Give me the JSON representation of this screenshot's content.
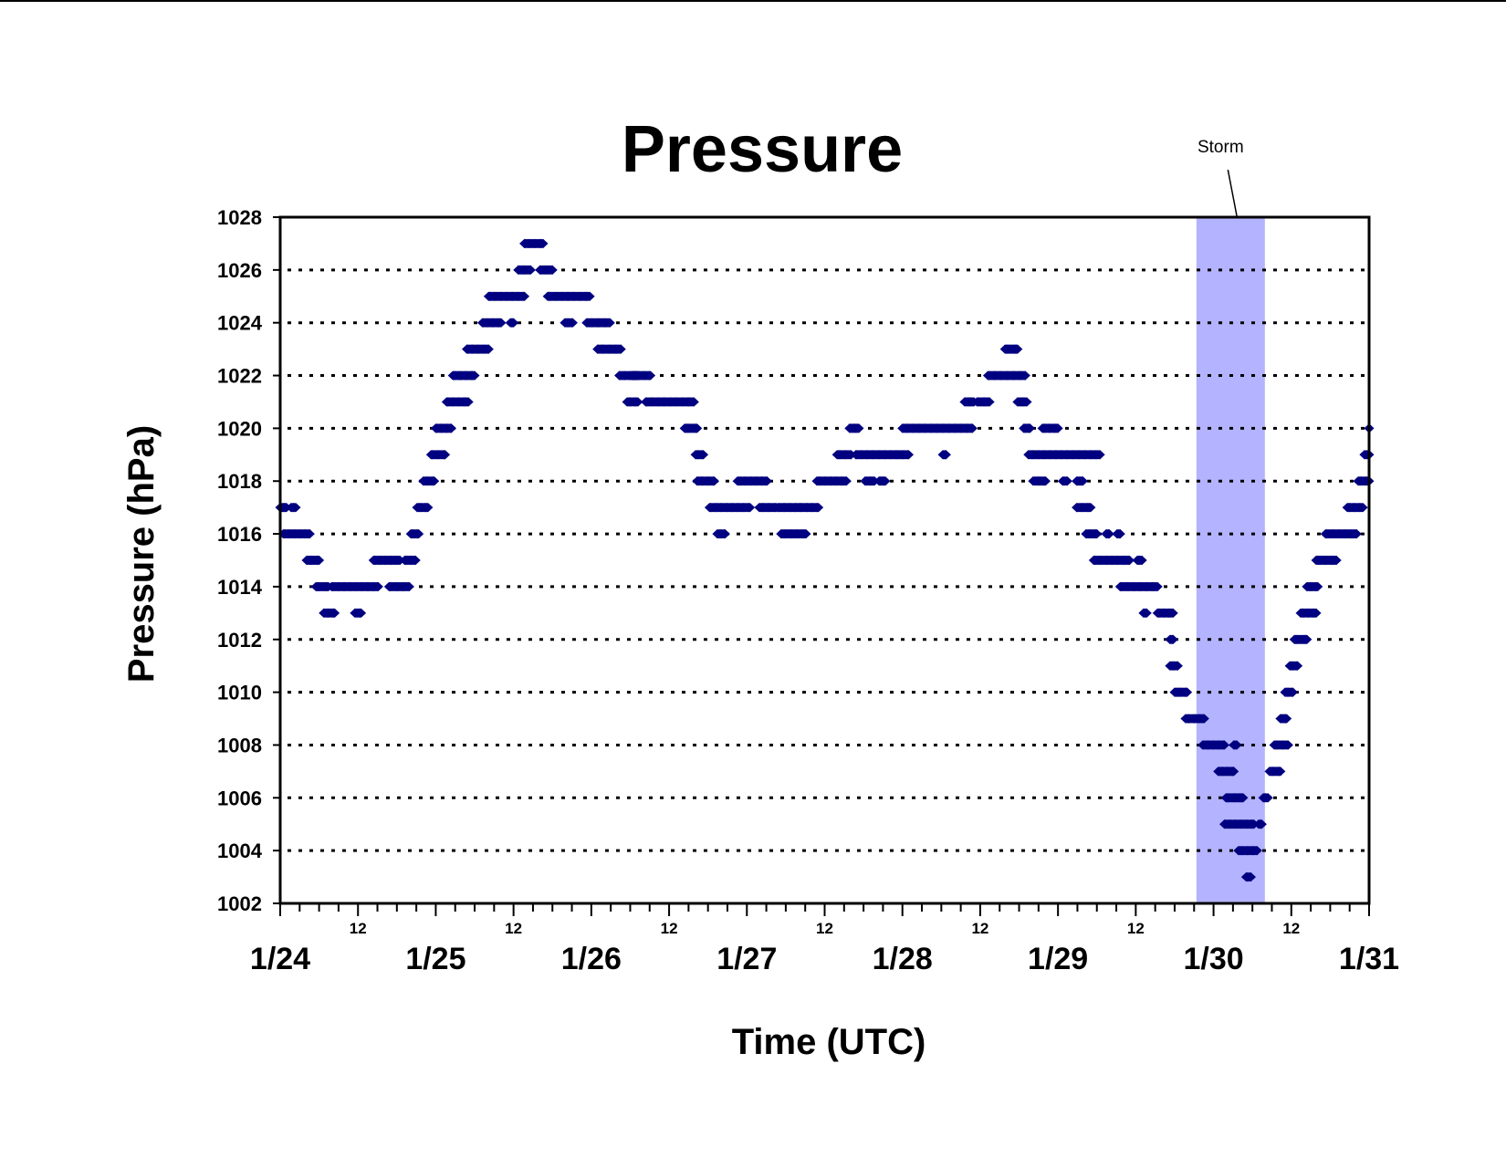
{
  "chart_data": {
    "type": "scatter",
    "title": "Pressure",
    "xlabel": "Time (UTC)",
    "ylabel": "Pressure (hPa)",
    "ylim": [
      1002,
      1028
    ],
    "yticks": [
      "1002",
      "1004",
      "1006",
      "1008",
      "1010",
      "1012",
      "1014",
      "1016",
      "1018",
      "1020",
      "1022",
      "1024",
      "1026",
      "1028"
    ],
    "xlim_days": [
      0,
      7
    ],
    "day_labels": [
      "1/24",
      "1/25",
      "1/26",
      "1/27",
      "1/28",
      "1/29",
      "1/30",
      "1/31"
    ],
    "noon_label": "12",
    "grid": "horizontal dotted",
    "legend": "none",
    "marker_color": "#000080",
    "storm_color": "#b3b3ff",
    "annotation": {
      "text": "Storm",
      "x_start": 5.89,
      "x_end": 6.33
    },
    "x_unit": "days since 1/24 00 UTC",
    "segments": [
      [
        0.0,
        0.04,
        1017
      ],
      [
        0.07,
        0.1,
        1017
      ],
      [
        0.02,
        0.19,
        1016
      ],
      [
        0.17,
        0.25,
        1015
      ],
      [
        0.23,
        0.31,
        1014
      ],
      [
        0.28,
        0.35,
        1013
      ],
      [
        0.33,
        0.63,
        1014
      ],
      [
        0.48,
        0.52,
        1013
      ],
      [
        0.6,
        0.77,
        1015
      ],
      [
        0.7,
        0.83,
        1014
      ],
      [
        0.8,
        0.87,
        1015
      ],
      [
        0.84,
        0.89,
        1016
      ],
      [
        0.88,
        0.95,
        1017
      ],
      [
        0.92,
        0.99,
        1018
      ],
      [
        0.97,
        1.06,
        1019
      ],
      [
        1.0,
        1.1,
        1020
      ],
      [
        1.07,
        1.21,
        1021
      ],
      [
        1.11,
        1.25,
        1022
      ],
      [
        1.2,
        1.34,
        1023
      ],
      [
        1.3,
        1.42,
        1024
      ],
      [
        1.48,
        1.5,
        1024
      ],
      [
        1.34,
        1.57,
        1025
      ],
      [
        1.53,
        1.61,
        1026
      ],
      [
        1.57,
        1.69,
        1027
      ],
      [
        1.67,
        1.75,
        1026
      ],
      [
        1.72,
        1.99,
        1025
      ],
      [
        1.83,
        1.88,
        1024
      ],
      [
        1.97,
        2.12,
        1024
      ],
      [
        2.04,
        2.19,
        1023
      ],
      [
        2.18,
        2.3,
        1022
      ],
      [
        2.26,
        2.38,
        1022
      ],
      [
        2.23,
        2.3,
        1021
      ],
      [
        2.35,
        2.66,
        1021
      ],
      [
        2.6,
        2.68,
        1020
      ],
      [
        2.67,
        2.72,
        1019
      ],
      [
        2.68,
        2.79,
        1018
      ],
      [
        2.76,
        3.02,
        1017
      ],
      [
        2.81,
        2.86,
        1016
      ],
      [
        2.94,
        3.13,
        1018
      ],
      [
        3.08,
        3.19,
        1017
      ],
      [
        3.2,
        3.34,
        1017
      ],
      [
        3.22,
        3.38,
        1016
      ],
      [
        3.34,
        3.46,
        1017
      ],
      [
        3.45,
        3.64,
        1018
      ],
      [
        3.58,
        3.67,
        1019
      ],
      [
        3.66,
        3.72,
        1020
      ],
      [
        3.7,
        4.04,
        1019
      ],
      [
        3.76,
        3.82,
        1018
      ],
      [
        3.85,
        3.89,
        1018
      ],
      [
        4.0,
        4.45,
        1020
      ],
      [
        4.26,
        4.28,
        1019
      ],
      [
        4.4,
        4.46,
        1021
      ],
      [
        4.48,
        4.56,
        1021
      ],
      [
        4.55,
        4.79,
        1022
      ],
      [
        4.66,
        4.74,
        1023
      ],
      [
        4.74,
        4.8,
        1021
      ],
      [
        4.78,
        4.82,
        1020
      ],
      [
        4.9,
        5.0,
        1020
      ],
      [
        4.81,
        5.27,
        1019
      ],
      [
        4.84,
        4.92,
        1018
      ],
      [
        5.03,
        5.06,
        1018
      ],
      [
        5.12,
        5.16,
        1018
      ],
      [
        5.12,
        5.21,
        1017
      ],
      [
        5.18,
        5.25,
        1016
      ],
      [
        5.31,
        5.33,
        1016
      ],
      [
        5.38,
        5.4,
        1016
      ],
      [
        5.23,
        5.46,
        1015
      ],
      [
        5.51,
        5.54,
        1015
      ],
      [
        5.4,
        5.64,
        1014
      ],
      [
        5.55,
        5.57,
        1013
      ],
      [
        5.64,
        5.74,
        1013
      ],
      [
        5.72,
        5.74,
        1012
      ],
      [
        5.72,
        5.77,
        1011
      ],
      [
        5.75,
        5.83,
        1010
      ],
      [
        5.82,
        5.94,
        1009
      ],
      [
        5.93,
        6.07,
        1008
      ],
      [
        6.13,
        6.15,
        1008
      ],
      [
        6.03,
        6.13,
        1007
      ],
      [
        6.08,
        6.19,
        1006
      ],
      [
        6.32,
        6.35,
        1006
      ],
      [
        6.07,
        6.26,
        1005
      ],
      [
        6.29,
        6.31,
        1005
      ],
      [
        6.16,
        6.28,
        1004
      ],
      [
        6.21,
        6.24,
        1003
      ],
      [
        6.36,
        6.43,
        1007
      ],
      [
        6.39,
        6.48,
        1008
      ],
      [
        6.43,
        6.47,
        1009
      ],
      [
        6.46,
        6.51,
        1010
      ],
      [
        6.49,
        6.54,
        1011
      ],
      [
        6.52,
        6.6,
        1012
      ],
      [
        6.56,
        6.66,
        1013
      ],
      [
        6.6,
        6.67,
        1014
      ],
      [
        6.66,
        6.79,
        1015
      ],
      [
        6.72,
        6.92,
        1016
      ],
      [
        6.86,
        6.96,
        1017
      ],
      [
        6.93,
        7.0,
        1018
      ],
      [
        6.97,
        7.0,
        1019
      ],
      [
        7.0,
        7.0,
        1020
      ]
    ]
  }
}
